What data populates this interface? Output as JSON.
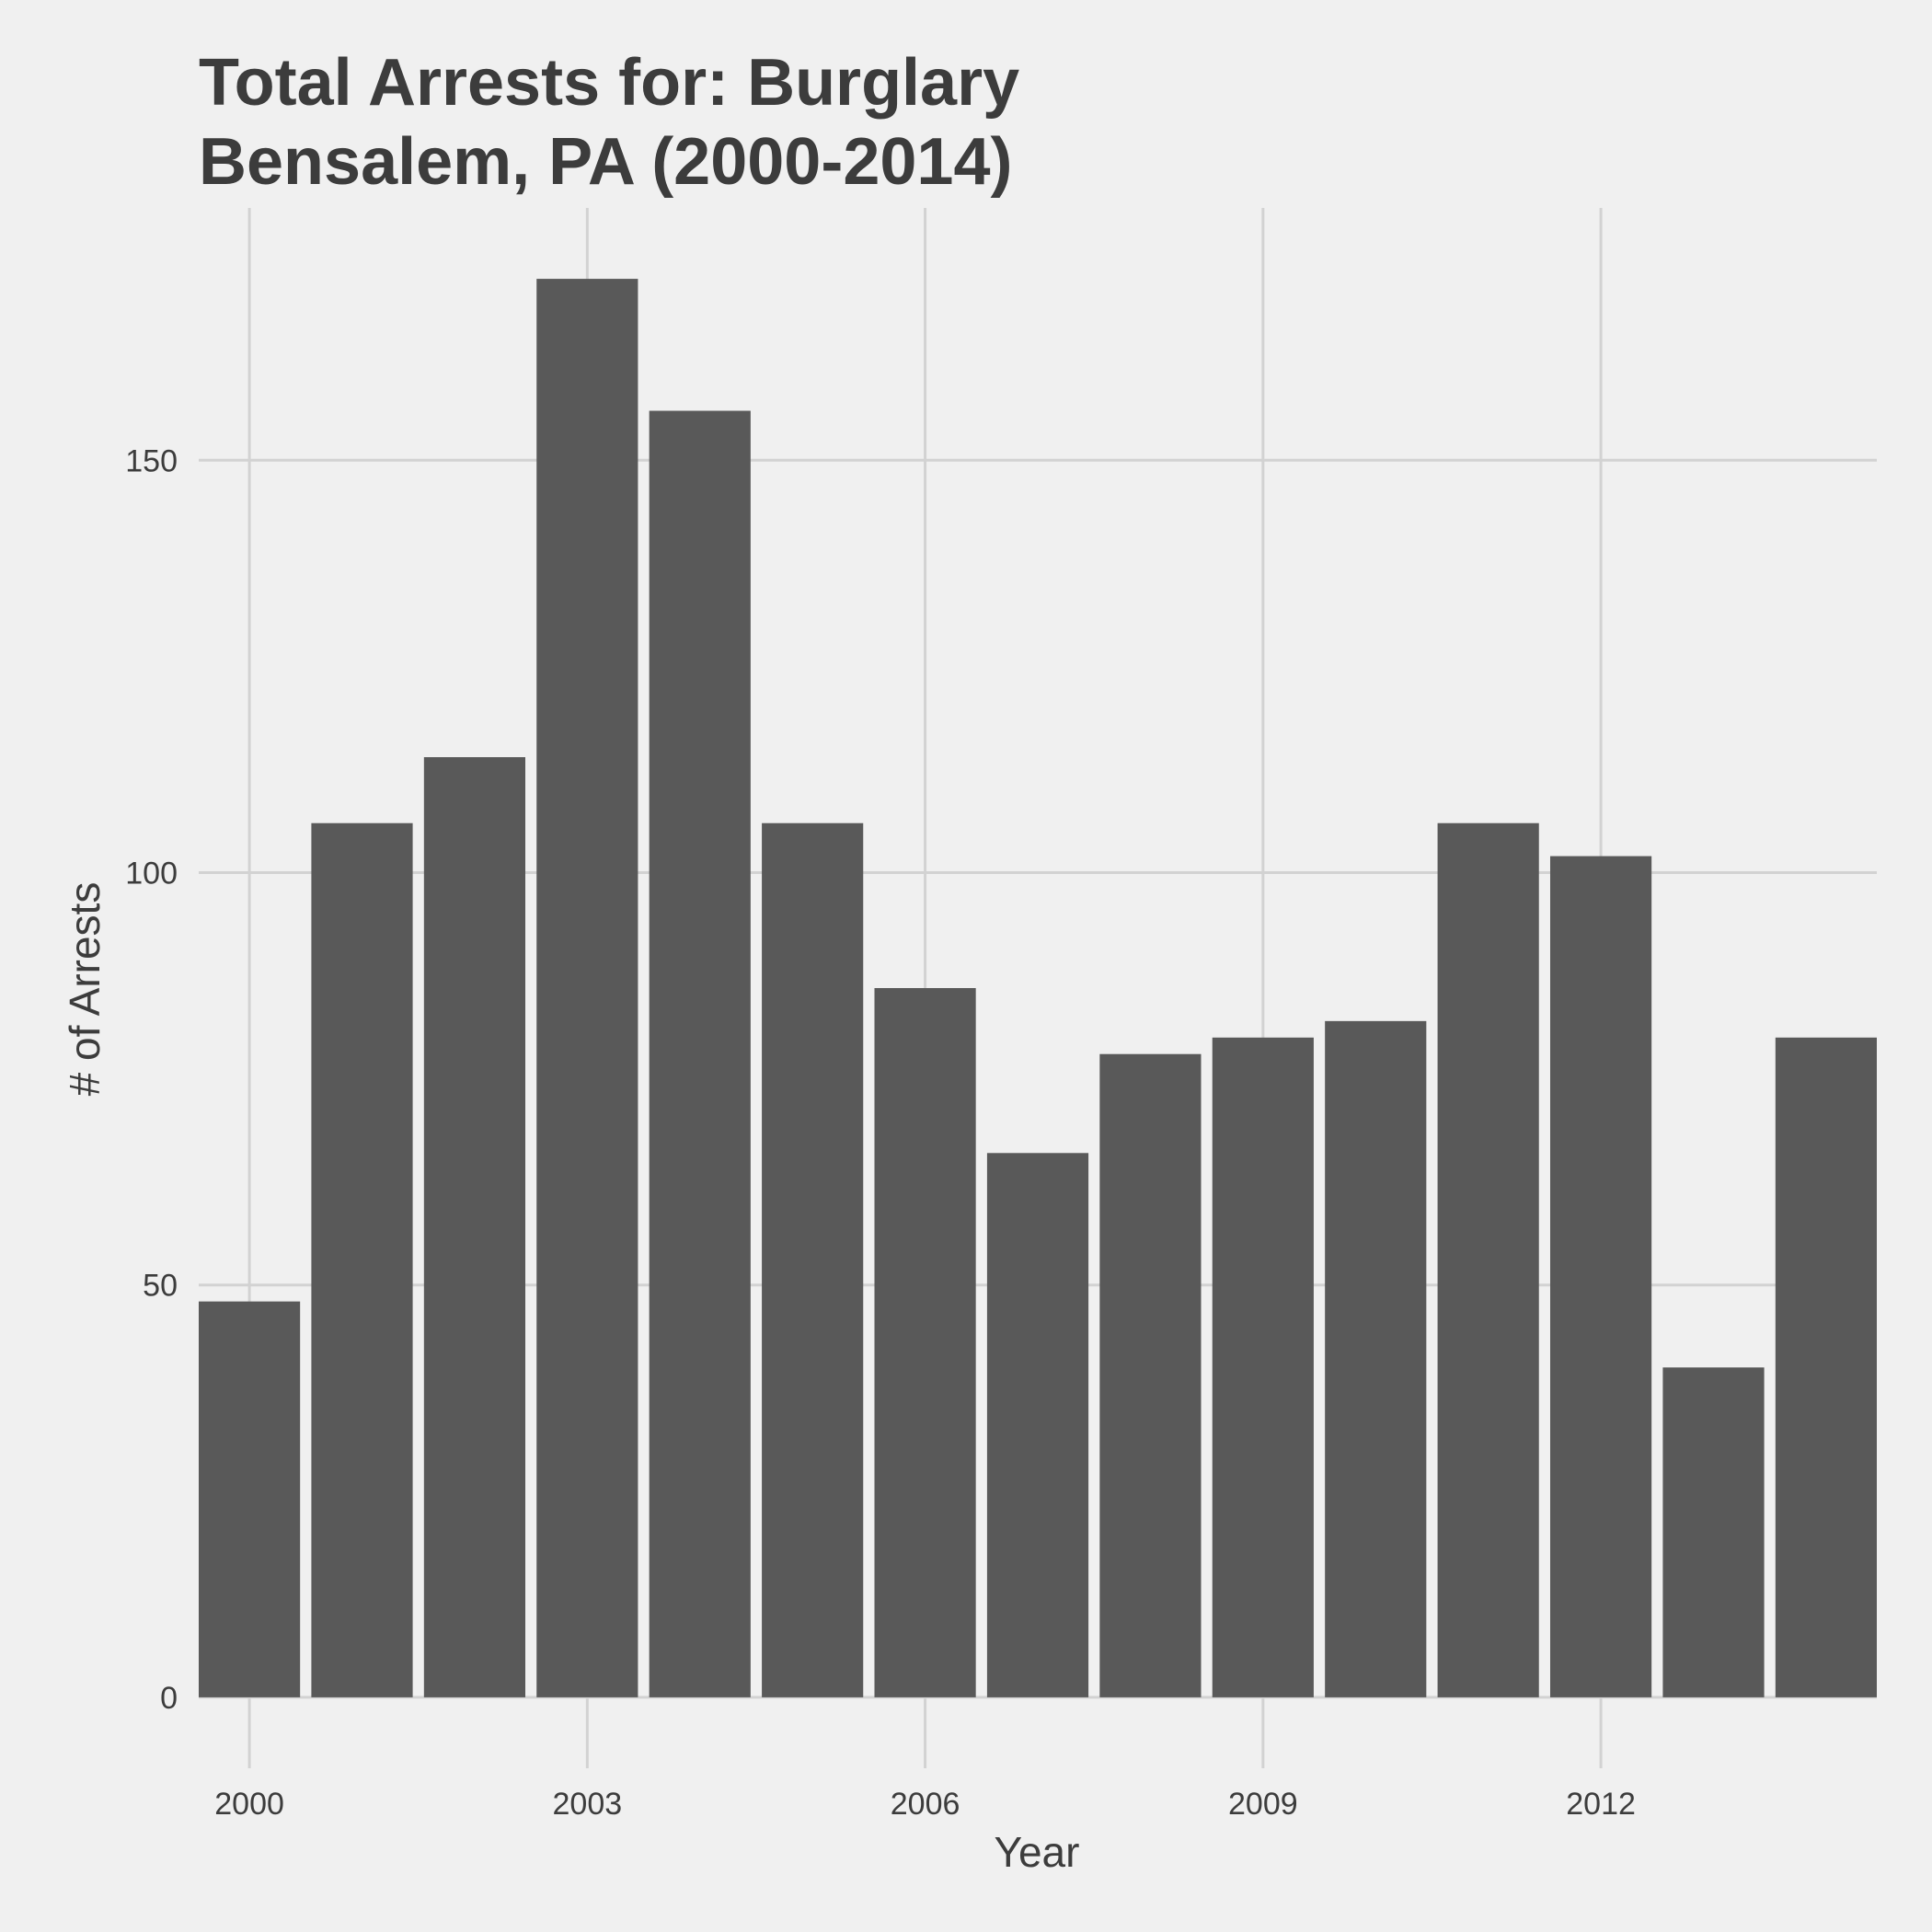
{
  "chart_data": {
    "type": "bar",
    "title": [
      "Total Arrests for: Burglary",
      "Bensalem, PA (2000-2014)"
    ],
    "xlabel": "Year",
    "ylabel": "# of Arrests",
    "x": [
      2000,
      2001,
      2002,
      2003,
      2004,
      2005,
      2006,
      2007,
      2008,
      2009,
      2010,
      2011,
      2012,
      2013,
      2014
    ],
    "values": [
      48,
      106,
      114,
      172,
      156,
      106,
      86,
      66,
      78,
      80,
      82,
      106,
      102,
      40,
      80
    ],
    "xticks": [
      2000,
      2003,
      2006,
      2009,
      2012
    ],
    "xtick_labels": [
      "2000",
      "2003",
      "2006",
      "2009",
      "2012"
    ],
    "yticks": [
      0,
      50,
      100,
      150
    ],
    "ytick_labels": [
      "0",
      "50",
      "100",
      "150"
    ],
    "xlim": [
      1999.55,
      2014.45
    ],
    "ylim": [
      -8.6,
      180.6
    ],
    "grid": true,
    "legend": "none",
    "colors": {
      "background": "#f0f0f0",
      "bar": "#595959",
      "grid": "#d2d2d2",
      "text": "#3c3c3c"
    }
  }
}
